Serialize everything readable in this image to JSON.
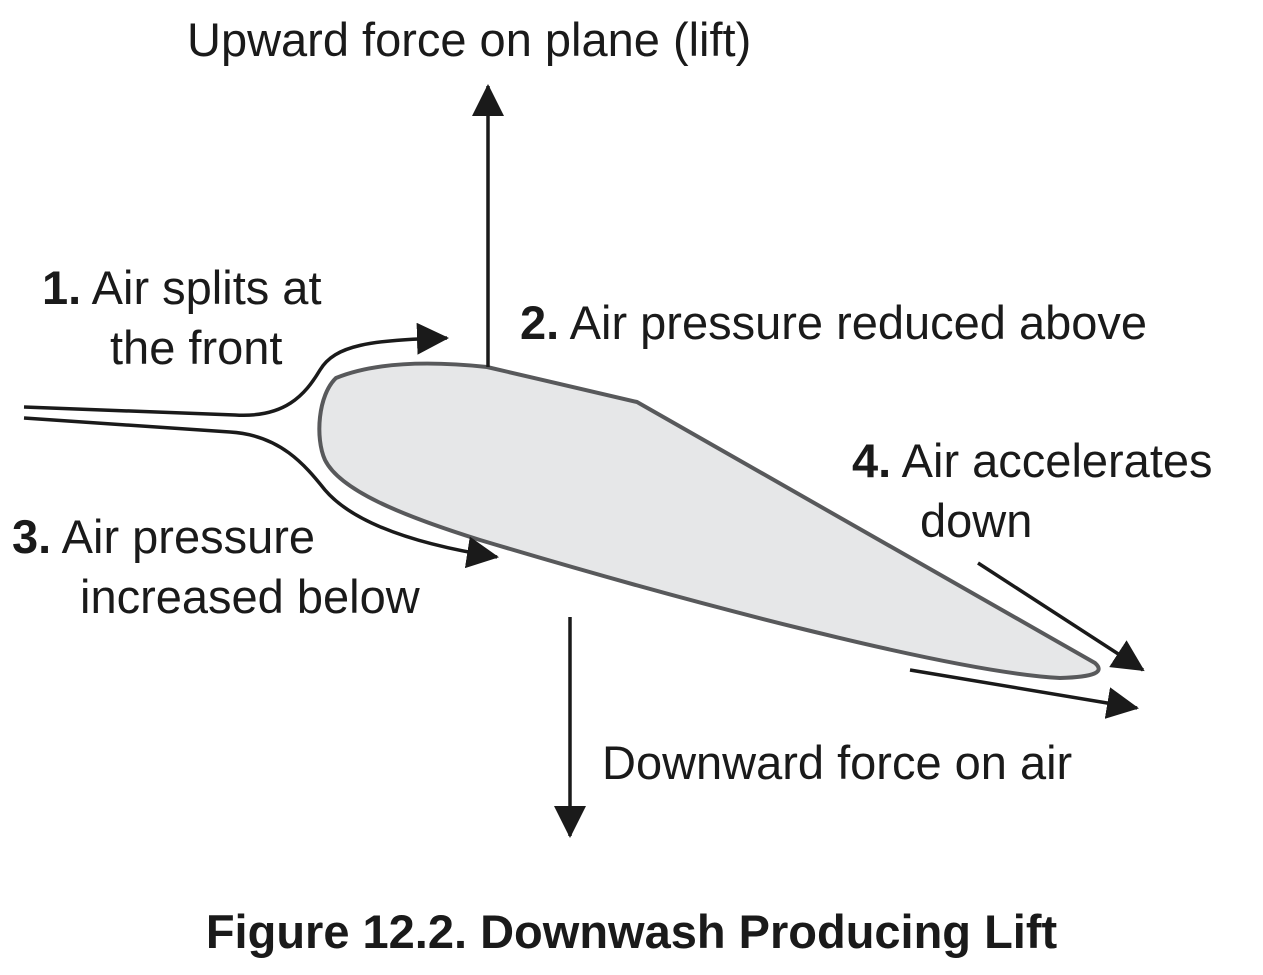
{
  "labels": {
    "lift": "Upward force on plane (lift)",
    "downward": "Downward force on air",
    "step1": {
      "number": "1.",
      "line1": "Air splits at",
      "line2": "the front"
    },
    "step2": {
      "number": "2.",
      "line1": "Air pressure reduced above"
    },
    "step3": {
      "number": "3.",
      "line1": "Air pressure",
      "line2": "increased below"
    },
    "step4": {
      "number": "4.",
      "line1": "Air accelerates",
      "line2": "down"
    }
  },
  "caption": "Figure 12.2. Downwash Producing Lift",
  "colors": {
    "airfoil_fill": "#e6e7e8",
    "airfoil_stroke": "#58595b",
    "arrow": "#1a1a1a",
    "text": "#1a1a1a"
  }
}
